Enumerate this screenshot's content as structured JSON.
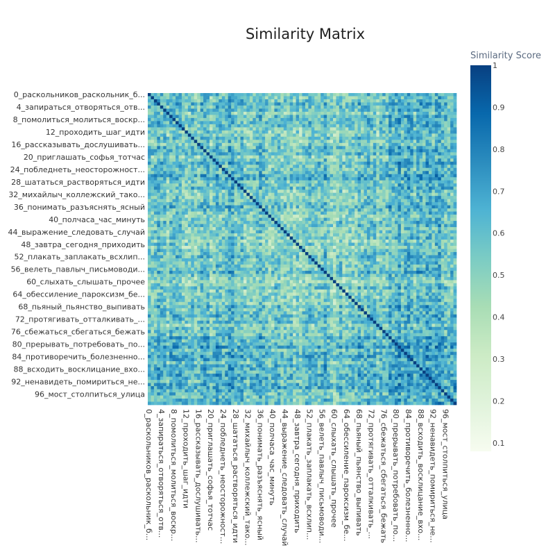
{
  "chart_data": {
    "type": "heatmap",
    "title": "Similarity Matrix",
    "colorbar": {
      "title": "Similarity Score",
      "range": [
        0.08,
        1
      ],
      "ticks": [
        0.1,
        0.2,
        0.3,
        0.4,
        0.5,
        0.6,
        0.7,
        0.8,
        0.9,
        1
      ],
      "tick_labels": [
        "0.1",
        "0.2",
        "0.3",
        "0.4",
        "0.5",
        "0.6",
        "0.7",
        "0.8",
        "0.9",
        "1"
      ],
      "colorscale": [
        [
          0.0,
          "#f7fcf0"
        ],
        [
          0.125,
          "#e0f3db"
        ],
        [
          0.25,
          "#ccebc5"
        ],
        [
          0.375,
          "#a8ddb5"
        ],
        [
          0.5,
          "#7bccc4"
        ],
        [
          0.625,
          "#4eb3d3"
        ],
        [
          0.75,
          "#2b8cbe"
        ],
        [
          0.875,
          "#0868ac"
        ],
        [
          1.0,
          "#084081"
        ]
      ]
    },
    "n": 100,
    "diagonal_value": 1,
    "tick_every": 4,
    "tick_labels": {
      "0": "0_раскольников_раскольник_б...",
      "4": "4_запираться_отворяться_отв...",
      "8": "8_помолиться_молиться_воскр...",
      "12": "12_проходить_шаг_идти",
      "16": "16_рассказывать_дослушивать...",
      "20": "20_приглашать_софья_тотчас",
      "24": "24_побледнеть_неосторожност...",
      "28": "28_шататься_растворяться_идти",
      "32": "32_михайлыч_коллежский_тако...",
      "36": "36_понимать_разъяснять_ясный",
      "40": "40_полчаса_час_минуть",
      "44": "44_выражение_следовать_случай",
      "48": "48_завтра_сегодня_приходить",
      "52": "52_плакать_заплакать_всхлип...",
      "56": "56_велеть_павлыч_письмоводи...",
      "60": "60_слыхать_слышать_прочее",
      "64": "64_обессиление_пароксизм_бе...",
      "68": "68_пьяный_пьянство_выпивать",
      "72": "72_протягивать_отталкивать_...",
      "76": "76_сбежаться_сбегаться_бежать",
      "80": "80_прерывать_потребовать_по...",
      "84": "84_противоречить_болезненно...",
      "88": "88_всходить_восклицание_вхо...",
      "92": "92_ненавидеть_помириться_не...",
      "96": "96_мост_столпиться_улица"
    },
    "x_tick_labels": {
      "0": "0_раскольников_раскольник_б...",
      "4": "4_запираться_отворяться_отв...",
      "8": "8_помолиться_молиться_воскр...",
      "12": "12_проходить_шаг_идти",
      "16": "16_рассказывать_дослушивать...",
      "20": "20_приглашать_софья_тотчас",
      "24": "24_побледнеть_неосторожност...",
      "28": "28_шататься_растворяться_идти",
      "32": "32_михайлыч_коллежский_тако...",
      "36": "36_понимать_разъяснять_ясный",
      "40": "40_полчаса_час_минуть",
      "44": "44_выражение_следовать_случай",
      "48": "48_завтра_сегодня_приходить",
      "52": "52_плакать_заплакать_всхлип...",
      "56": "56_велеть_павлыч_письмоводи...",
      "60": "60_слыхать_слышать_прочее",
      "64": "64_обессиление_пароксизм_бе...",
      "68": "68_пьяный_пьянство_выпивать",
      "72": "72_протягивать_отталкивать_...",
      "76": "76_сбежаться_сбегаться_бежать",
      "80": "80_прерывать_потребовать_по...",
      "84": "84_противоречить_болезненно...",
      "88": "88_всходить_восклицание_вхо...",
      "92": "92_ненавидеть_помириться_не...",
      "96": "96_мост_столпиться_улица"
    }
  }
}
